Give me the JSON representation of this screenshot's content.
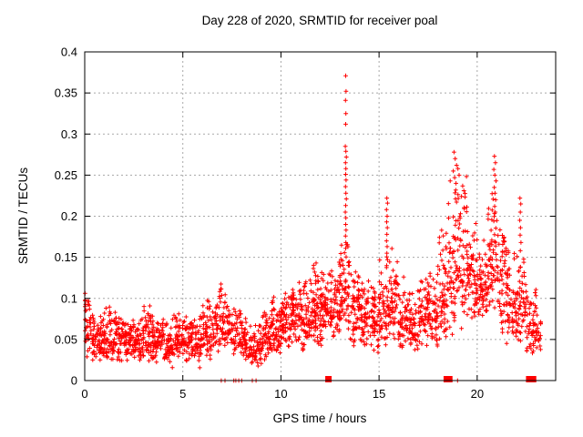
{
  "chart_data": {
    "type": "scatter",
    "title": "Day 228 of 2020, SRMTID for receiver poal",
    "xlabel": "GPS time / hours",
    "ylabel": "SRMTID / TECUs",
    "xlim": [
      0,
      24
    ],
    "ylim": [
      0,
      0.4
    ],
    "xticks": [
      0,
      5,
      10,
      15,
      20
    ],
    "xtick_labels": [
      "0",
      "5",
      "10",
      "15",
      "20"
    ],
    "yticks": [
      0,
      0.05,
      0.1,
      0.15,
      0.2,
      0.25,
      0.3,
      0.35,
      0.4
    ],
    "ytick_labels": [
      "0",
      "0.05",
      "0.1",
      "0.15",
      "0.2",
      "0.25",
      "0.3",
      "0.35",
      "0.4"
    ],
    "grid": true,
    "legend": "none",
    "marker": "plus",
    "colors": {
      "points": "#ff0000",
      "grid": "#a8a8a8",
      "border": "#000000",
      "text": "#000000",
      "background": "#ffffff"
    },
    "seed": 20200228,
    "density_bins": [
      [
        0.0,
        0.5,
        0.025,
        0.05,
        0.106,
        55
      ],
      [
        0.5,
        1.0,
        0.02,
        0.048,
        0.09,
        55
      ],
      [
        1.0,
        1.5,
        0.02,
        0.045,
        0.096,
        55
      ],
      [
        1.5,
        2.0,
        0.02,
        0.05,
        0.09,
        55
      ],
      [
        2.0,
        2.5,
        0.02,
        0.045,
        0.085,
        55
      ],
      [
        2.5,
        3.0,
        0.015,
        0.042,
        0.08,
        55
      ],
      [
        3.0,
        3.5,
        0.02,
        0.048,
        0.098,
        55
      ],
      [
        3.5,
        4.0,
        0.02,
        0.045,
        0.08,
        55
      ],
      [
        4.0,
        4.5,
        0.015,
        0.04,
        0.078,
        55
      ],
      [
        4.5,
        5.0,
        0.02,
        0.045,
        0.085,
        55
      ],
      [
        5.0,
        5.5,
        0.018,
        0.042,
        0.08,
        50
      ],
      [
        5.5,
        6.0,
        0.015,
        0.045,
        0.085,
        50
      ],
      [
        6.0,
        6.5,
        0.02,
        0.055,
        0.1,
        50
      ],
      [
        6.5,
        7.0,
        0.03,
        0.065,
        0.125,
        50
      ],
      [
        7.0,
        7.5,
        0.03,
        0.068,
        0.12,
        48
      ],
      [
        7.5,
        8.0,
        0.025,
        0.055,
        0.095,
        45
      ],
      [
        8.0,
        8.5,
        0.02,
        0.045,
        0.08,
        48
      ],
      [
        8.5,
        9.0,
        0.015,
        0.04,
        0.075,
        48
      ],
      [
        9.0,
        9.5,
        0.02,
        0.05,
        0.09,
        52
      ],
      [
        9.5,
        10.0,
        0.03,
        0.058,
        0.105,
        55
      ],
      [
        10.0,
        10.5,
        0.03,
        0.062,
        0.115,
        58
      ],
      [
        10.5,
        11.0,
        0.035,
        0.068,
        0.125,
        60
      ],
      [
        11.0,
        11.5,
        0.03,
        0.068,
        0.135,
        60
      ],
      [
        11.5,
        12.0,
        0.04,
        0.075,
        0.148,
        62
      ],
      [
        12.0,
        12.5,
        0.04,
        0.078,
        0.14,
        62
      ],
      [
        12.5,
        13.0,
        0.045,
        0.085,
        0.155,
        62
      ],
      [
        13.0,
        13.5,
        0.05,
        0.095,
        0.185,
        62
      ],
      [
        13.5,
        14.0,
        0.04,
        0.085,
        0.15,
        58
      ],
      [
        14.0,
        14.5,
        0.035,
        0.075,
        0.13,
        55
      ],
      [
        14.5,
        15.0,
        0.03,
        0.068,
        0.12,
        55
      ],
      [
        15.0,
        15.5,
        0.035,
        0.08,
        0.16,
        55
      ],
      [
        15.5,
        16.0,
        0.04,
        0.085,
        0.175,
        55
      ],
      [
        16.0,
        16.5,
        0.03,
        0.065,
        0.13,
        50
      ],
      [
        16.5,
        17.0,
        0.03,
        0.06,
        0.12,
        50
      ],
      [
        17.0,
        17.5,
        0.035,
        0.07,
        0.14,
        55
      ],
      [
        17.5,
        18.0,
        0.04,
        0.075,
        0.15,
        55
      ],
      [
        18.0,
        18.5,
        0.05,
        0.09,
        0.2,
        60
      ],
      [
        18.5,
        19.0,
        0.05,
        0.11,
        0.245,
        62
      ],
      [
        19.0,
        19.5,
        0.05,
        0.12,
        0.25,
        62
      ],
      [
        19.5,
        20.0,
        0.07,
        0.11,
        0.2,
        60
      ],
      [
        20.0,
        20.5,
        0.07,
        0.1,
        0.18,
        60
      ],
      [
        20.5,
        21.0,
        0.08,
        0.12,
        0.24,
        62
      ],
      [
        21.0,
        21.5,
        0.05,
        0.1,
        0.2,
        58
      ],
      [
        21.5,
        22.0,
        0.04,
        0.09,
        0.17,
        58
      ],
      [
        22.0,
        22.5,
        0.035,
        0.08,
        0.16,
        55
      ],
      [
        22.5,
        23.0,
        0.028,
        0.055,
        0.12,
        50
      ],
      [
        23.0,
        23.25,
        0.03,
        0.055,
        0.1,
        20
      ]
    ],
    "spike_points": [
      [
        0.02,
        0.106
      ],
      [
        0.03,
        0.098
      ],
      [
        0.02,
        0.09
      ],
      [
        0.04,
        0.085
      ],
      [
        13.3,
        0.371
      ],
      [
        13.32,
        0.352
      ],
      [
        13.29,
        0.341
      ],
      [
        13.31,
        0.325
      ],
      [
        13.3,
        0.312
      ],
      [
        13.28,
        0.285
      ],
      [
        13.31,
        0.279
      ],
      [
        13.33,
        0.272
      ],
      [
        13.29,
        0.265
      ],
      [
        13.31,
        0.258
      ],
      [
        13.3,
        0.251
      ],
      [
        13.32,
        0.244
      ],
      [
        13.29,
        0.236
      ],
      [
        13.31,
        0.228
      ],
      [
        13.33,
        0.221
      ],
      [
        13.3,
        0.213
      ],
      [
        13.28,
        0.205
      ],
      [
        13.31,
        0.198
      ],
      [
        13.3,
        0.19
      ],
      [
        13.32,
        0.183
      ],
      [
        13.29,
        0.176
      ],
      [
        13.31,
        0.168
      ],
      [
        13.3,
        0.161
      ],
      [
        15.4,
        0.222
      ],
      [
        15.43,
        0.216
      ],
      [
        15.38,
        0.208
      ],
      [
        15.41,
        0.2
      ],
      [
        15.39,
        0.193
      ],
      [
        15.42,
        0.186
      ],
      [
        15.4,
        0.178
      ],
      [
        15.38,
        0.17
      ],
      [
        15.41,
        0.163
      ],
      [
        15.4,
        0.155
      ],
      [
        15.43,
        0.147
      ],
      [
        15.39,
        0.14
      ],
      [
        18.82,
        0.278
      ],
      [
        18.88,
        0.27
      ],
      [
        18.95,
        0.262
      ],
      [
        18.78,
        0.255
      ],
      [
        19.02,
        0.258
      ],
      [
        19.08,
        0.25
      ],
      [
        18.85,
        0.247
      ],
      [
        18.92,
        0.24
      ],
      [
        20.88,
        0.273
      ],
      [
        20.93,
        0.265
      ],
      [
        20.85,
        0.257
      ],
      [
        20.9,
        0.25
      ],
      [
        20.96,
        0.243
      ],
      [
        20.87,
        0.235
      ],
      [
        20.91,
        0.228
      ],
      [
        20.94,
        0.22
      ],
      [
        20.89,
        0.212
      ],
      [
        20.92,
        0.205
      ],
      [
        22.18,
        0.222
      ],
      [
        22.22,
        0.215
      ],
      [
        22.2,
        0.205
      ],
      [
        22.17,
        0.195
      ],
      [
        22.21,
        0.186
      ],
      [
        22.19,
        0.177
      ],
      [
        22.23,
        0.168
      ],
      [
        22.2,
        0.158
      ]
    ],
    "zero_markers": {
      "plus": [
        6.96,
        7.15,
        7.6,
        7.7,
        7.85,
        8.0,
        8.54,
        8.73,
        19.0
      ],
      "square": [
        12.42,
        18.45,
        18.58,
        22.65,
        22.85
      ]
    }
  }
}
